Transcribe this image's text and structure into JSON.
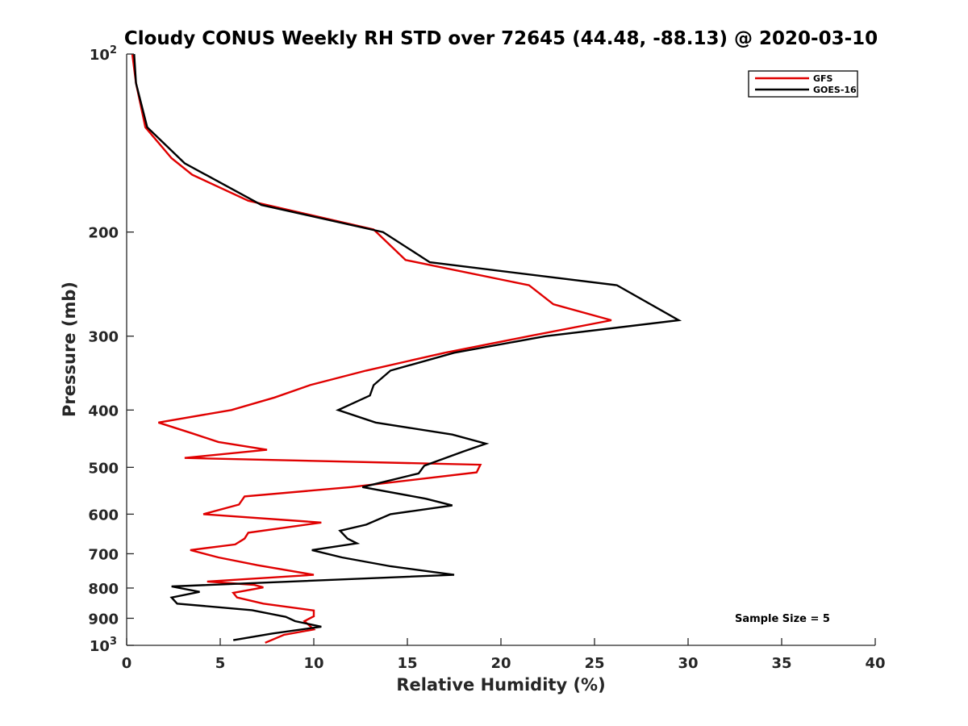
{
  "chart_data": {
    "type": "line",
    "title": "Cloudy CONUS Weekly RH STD over 72645 (44.48, -88.13) @ 2020-03-10",
    "xlabel": "Relative Humidity (%)",
    "ylabel": "Pressure (mb)",
    "xlim": [
      0,
      40
    ],
    "ylim": [
      100,
      1000
    ],
    "y_scale": "log",
    "y_inverted": true,
    "grid": false,
    "legend_position": "top-right",
    "x_ticks": [
      0,
      5,
      10,
      15,
      20,
      25,
      30,
      35,
      40
    ],
    "x_tick_labels": [
      "0",
      "5",
      "10",
      "15",
      "20",
      "25",
      "30",
      "35",
      "40"
    ],
    "y_ticks": [
      200,
      300,
      400,
      500,
      600,
      700,
      800,
      900
    ],
    "y_tick_labels": [
      "200",
      "300",
      "400",
      "500",
      "600",
      "700",
      "800",
      "900"
    ],
    "y_end_labels": [
      {
        "value": 100,
        "base": "10",
        "exp": "2"
      },
      {
        "value": 1000,
        "base": "10",
        "exp": "3"
      }
    ],
    "annotation": "Sample Size = 5",
    "series": [
      {
        "name": "GFS",
        "color": "#e00000",
        "points": [
          [
            0.3,
            100
          ],
          [
            0.5,
            112
          ],
          [
            1.0,
            133
          ],
          [
            2.4,
            150
          ],
          [
            3.5,
            160
          ],
          [
            6.5,
            177
          ],
          [
            13.2,
            198
          ],
          [
            14.9,
            223
          ],
          [
            21.5,
            246
          ],
          [
            22.8,
            265
          ],
          [
            25.9,
            282
          ],
          [
            21.5,
            300
          ],
          [
            17.0,
            320
          ],
          [
            12.8,
            343
          ],
          [
            9.8,
            363
          ],
          [
            7.9,
            381
          ],
          [
            5.6,
            400
          ],
          [
            1.7,
            420
          ],
          [
            3.5,
            438
          ],
          [
            4.9,
            453
          ],
          [
            7.5,
            467
          ],
          [
            3.1,
            482
          ],
          [
            18.9,
            495
          ],
          [
            18.7,
            510
          ],
          [
            12.0,
            540
          ],
          [
            6.3,
            560
          ],
          [
            6.0,
            578
          ],
          [
            4.1,
            600
          ],
          [
            10.4,
            620
          ],
          [
            6.5,
            645
          ],
          [
            6.3,
            660
          ],
          [
            5.8,
            675
          ],
          [
            3.4,
            690
          ],
          [
            4.9,
            710
          ],
          [
            7.0,
            732
          ],
          [
            10.0,
            760
          ],
          [
            4.3,
            780
          ],
          [
            6.8,
            790
          ],
          [
            7.3,
            798
          ],
          [
            5.7,
            815
          ],
          [
            5.9,
            830
          ],
          [
            7.3,
            850
          ],
          [
            10.0,
            873
          ],
          [
            10.0,
            893
          ],
          [
            9.5,
            910
          ],
          [
            10.0,
            940
          ],
          [
            8.4,
            960
          ],
          [
            7.4,
            990
          ]
        ]
      },
      {
        "name": "GOES-16",
        "color": "#000000",
        "points": [
          [
            0.4,
            100
          ],
          [
            0.5,
            112
          ],
          [
            1.1,
            133
          ],
          [
            3.1,
            153
          ],
          [
            7.2,
            180
          ],
          [
            13.7,
            200
          ],
          [
            16.2,
            225
          ],
          [
            26.2,
            246
          ],
          [
            29.5,
            282
          ],
          [
            22.4,
            300
          ],
          [
            17.5,
            320
          ],
          [
            14.1,
            343
          ],
          [
            13.2,
            363
          ],
          [
            13.0,
            378
          ],
          [
            11.3,
            400
          ],
          [
            13.3,
            420
          ],
          [
            17.4,
            440
          ],
          [
            19.2,
            456
          ],
          [
            18.0,
            470
          ],
          [
            15.9,
            497
          ],
          [
            15.6,
            512
          ],
          [
            12.6,
            540
          ],
          [
            16.0,
            565
          ],
          [
            17.4,
            580
          ],
          [
            14.1,
            600
          ],
          [
            12.8,
            625
          ],
          [
            11.4,
            640
          ],
          [
            11.8,
            660
          ],
          [
            12.3,
            672
          ],
          [
            9.9,
            690
          ],
          [
            11.5,
            710
          ],
          [
            14.1,
            735
          ],
          [
            17.5,
            760
          ],
          [
            2.4,
            795
          ],
          [
            3.9,
            812
          ],
          [
            2.4,
            830
          ],
          [
            2.7,
            850
          ],
          [
            6.7,
            872
          ],
          [
            8.5,
            895
          ],
          [
            9.0,
            910
          ],
          [
            10.4,
            930
          ],
          [
            7.8,
            955
          ],
          [
            5.7,
            980
          ]
        ]
      }
    ]
  }
}
